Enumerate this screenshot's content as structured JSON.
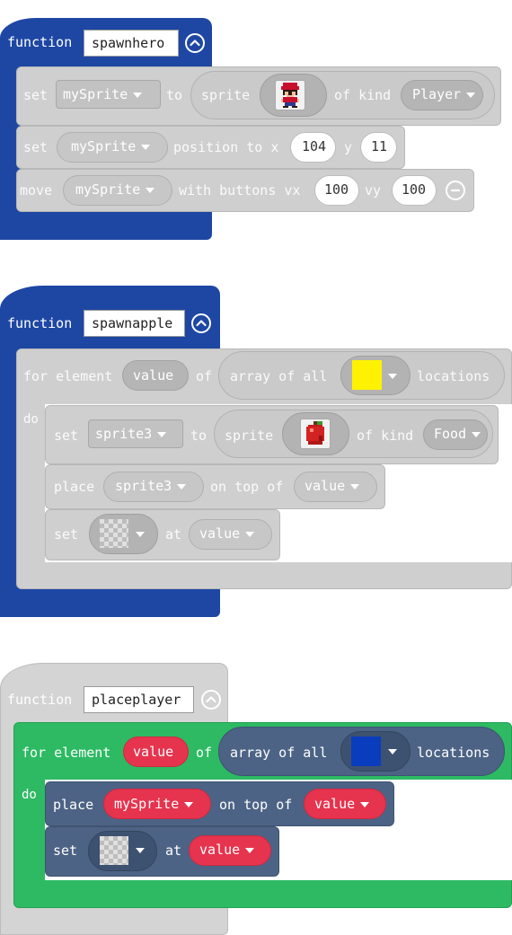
{
  "colors": {
    "functions_blue": "#1e47a4",
    "block_gray": "#cfcfcf",
    "loop_green": "#2dba63",
    "slate": "#4c6385",
    "red": "#e6344e",
    "yellow": "#fff200",
    "blue_tile": "#0a3dbd"
  },
  "f1": {
    "keyword": "function",
    "name": "spawnhero",
    "set1": {
      "kw": "set",
      "var": "mySprite",
      "to": "to",
      "sprite": "sprite",
      "ofkind": "of kind",
      "kind": "Player"
    },
    "set2": {
      "kw": "set",
      "var": "mySprite",
      "pos": "position to x",
      "x": "104",
      "y": "y",
      "yv": "11"
    },
    "move": {
      "kw": "move",
      "var": "mySprite",
      "wb": "with buttons vx",
      "vx": "100",
      "vy": "vy",
      "vyv": "100"
    }
  },
  "f2": {
    "keyword": "function",
    "name": "spawnapple",
    "for": "for element",
    "var": "value",
    "of": "of",
    "arr": "array of all",
    "loc": "locations",
    "do": "do",
    "set1": {
      "kw": "set",
      "var": "sprite3",
      "to": "to",
      "sprite": "sprite",
      "ofkind": "of kind",
      "kind": "Food"
    },
    "place": {
      "kw": "place",
      "var": "sprite3",
      "ontop": "on top of",
      "val": "value"
    },
    "set2": {
      "kw": "set",
      "at": "at",
      "val": "value"
    }
  },
  "f3": {
    "keyword": "function",
    "name": "placeplayer",
    "for": "for element",
    "var": "value",
    "of": "of",
    "arr": "array of all",
    "loc": "locations",
    "do": "do",
    "place": {
      "kw": "place",
      "var": "mySprite",
      "ontop": "on top of",
      "val": "value"
    },
    "set": {
      "kw": "set",
      "at": "at",
      "val": "value"
    }
  }
}
